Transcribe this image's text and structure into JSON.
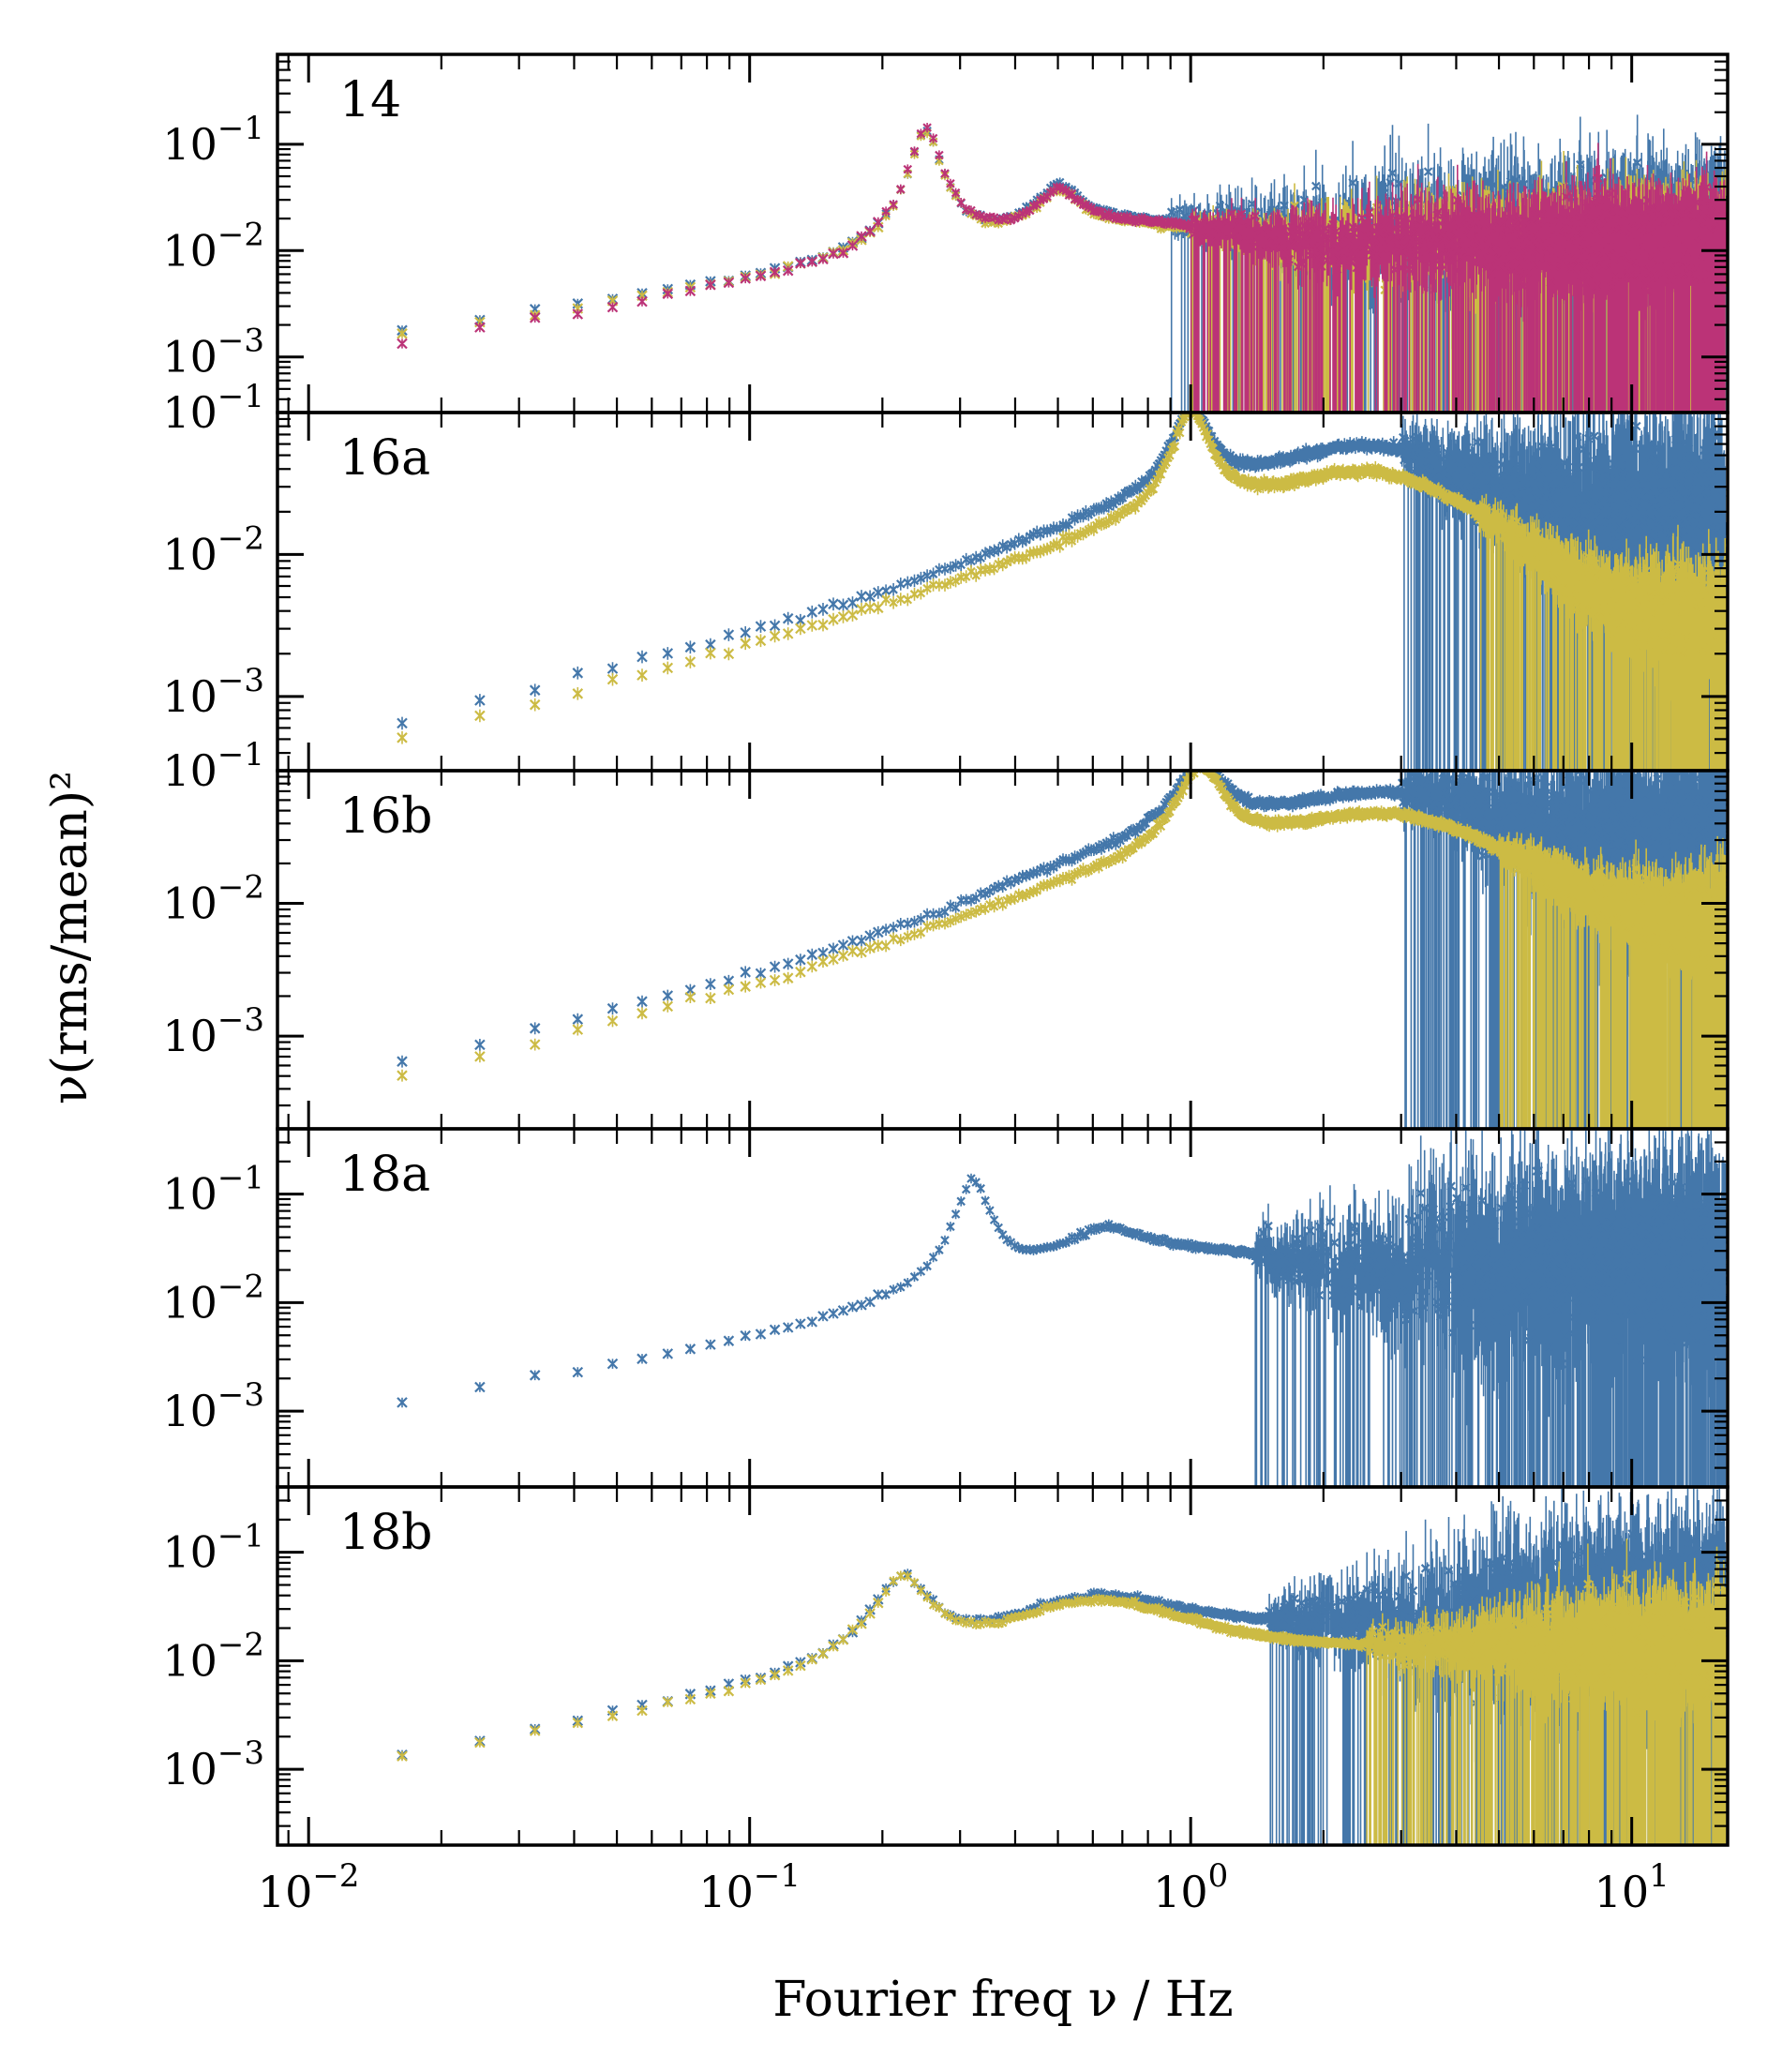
{
  "chart_data": {
    "type": "scatter",
    "title": "",
    "xlabel": "Fourier freq ν / Hz",
    "ylabel": "ν(rms/mean)²",
    "xscale": "log",
    "yscale": "log",
    "xlim": [
      0.0085,
      16.5
    ],
    "xticks": [
      {
        "value": 0.01,
        "base": "10",
        "exp": "−2"
      },
      {
        "value": 0.1,
        "base": "10",
        "exp": "−1"
      },
      {
        "value": 1,
        "base": "10",
        "exp": "0"
      },
      {
        "value": 10,
        "base": "10",
        "exp": "1"
      }
    ],
    "marker": "x",
    "colors": {
      "blue": "#4477aa",
      "yellow": "#ccbb44",
      "magenta": "#bb3377"
    },
    "panels": [
      {
        "label": "14",
        "ylim": [
          0.0003,
          0.7
        ],
        "yticks": [
          {
            "value": 0.1,
            "base": "10",
            "exp": "−1"
          },
          {
            "value": 0.01,
            "base": "10",
            "exp": "−2"
          },
          {
            "value": 0.001,
            "base": "10",
            "exp": "−3"
          }
        ],
        "series": [
          {
            "name": "blue",
            "color": "#4477aa",
            "components": [
              {
                "kind": "powerlaw",
                "norm": 0.0019,
                "pivot": 0.02,
                "slope": 0.62,
                "cutoff": 0.3
              },
              {
                "kind": "lorentz",
                "amp": 0.12,
                "nu0": 0.25,
                "width": 0.018
              },
              {
                "kind": "lorentz",
                "amp": 0.025,
                "nu0": 0.5,
                "width": 0.06
              },
              {
                "kind": "flat",
                "level": 0.014,
                "slope": 0.0
              }
            ],
            "noise_from": 0.9,
            "noise": 1.1
          },
          {
            "name": "yellow",
            "color": "#ccbb44",
            "components": [
              {
                "kind": "powerlaw",
                "norm": 0.0018,
                "pivot": 0.02,
                "slope": 0.62,
                "cutoff": 0.3
              },
              {
                "kind": "lorentz",
                "amp": 0.12,
                "nu0": 0.25,
                "width": 0.018
              },
              {
                "kind": "lorentz",
                "amp": 0.022,
                "nu0": 0.5,
                "width": 0.06
              },
              {
                "kind": "flat",
                "level": 0.012,
                "slope": 0.0
              }
            ],
            "noise_from": 1.0,
            "noise": 0.8
          },
          {
            "name": "magenta",
            "color": "#bb3377",
            "components": [
              {
                "kind": "powerlaw",
                "norm": 0.0015,
                "pivot": 0.02,
                "slope": 0.7,
                "cutoff": 0.3
              },
              {
                "kind": "lorentz",
                "amp": 0.13,
                "nu0": 0.25,
                "width": 0.018
              },
              {
                "kind": "lorentz",
                "amp": 0.022,
                "nu0": 0.5,
                "width": 0.06
              },
              {
                "kind": "flat",
                "level": 0.012,
                "slope": 0.0
              }
            ],
            "noise_from": 1.0,
            "noise": 0.8
          }
        ]
      },
      {
        "label": "16a",
        "ylim": [
          0.0003,
          0.1
        ],
        "yticks": [
          {
            "value": 0.1,
            "base": "10",
            "exp": "−1"
          },
          {
            "value": 0.01,
            "base": "10",
            "exp": "−2"
          },
          {
            "value": 0.001,
            "base": "10",
            "exp": "−3"
          }
        ],
        "series": [
          {
            "name": "blue",
            "color": "#4477aa",
            "components": [
              {
                "kind": "powerlaw",
                "norm": 0.0006,
                "pivot": 0.016,
                "slope": 0.75,
                "cutoff": 1.2
              },
              {
                "kind": "lorentz",
                "amp": 0.085,
                "nu0": 1.0,
                "width": 0.09
              },
              {
                "kind": "lorentz",
                "amp": 0.028,
                "nu0": 2.2,
                "width": 1.2
              },
              {
                "kind": "flat",
                "level": 0.012,
                "slope": 0.0
              }
            ],
            "noise_from": 3.0,
            "noise": 1.3
          },
          {
            "name": "yellow",
            "color": "#ccbb44",
            "components": [
              {
                "kind": "powerlaw",
                "norm": 0.00045,
                "pivot": 0.016,
                "slope": 0.8,
                "cutoff": 1.2
              },
              {
                "kind": "lorentz",
                "amp": 0.085,
                "nu0": 1.0,
                "width": 0.09
              },
              {
                "kind": "lorentz",
                "amp": 0.017,
                "nu0": 2.2,
                "width": 1.2
              },
              {
                "kind": "flat",
                "level": 0.005,
                "slope": -0.3
              }
            ],
            "noise_from": 4.5,
            "noise": 0.7
          }
        ]
      },
      {
        "label": "16b",
        "ylim": [
          0.0002,
          0.1
        ],
        "yticks": [
          {
            "value": 0.1,
            "base": "10",
            "exp": "−1"
          },
          {
            "value": 0.01,
            "base": "10",
            "exp": "−2"
          },
          {
            "value": 0.001,
            "base": "10",
            "exp": "−3"
          }
        ],
        "series": [
          {
            "name": "blue",
            "color": "#4477aa",
            "components": [
              {
                "kind": "powerlaw",
                "norm": 0.00055,
                "pivot": 0.016,
                "slope": 0.78,
                "cutoff": 1.3
              },
              {
                "kind": "lorentz",
                "amp": 0.085,
                "nu0": 1.05,
                "width": 0.12
              },
              {
                "kind": "lorentz",
                "amp": 0.027,
                "nu0": 2.3,
                "width": 1.5
              },
              {
                "kind": "flat",
                "level": 0.02,
                "slope": 0.0
              }
            ],
            "noise_from": 3.0,
            "noise": 1.3
          },
          {
            "name": "yellow",
            "color": "#ccbb44",
            "components": [
              {
                "kind": "powerlaw",
                "norm": 0.00042,
                "pivot": 0.016,
                "slope": 0.82,
                "cutoff": 1.3
              },
              {
                "kind": "lorentz",
                "amp": 0.085,
                "nu0": 1.05,
                "width": 0.12
              },
              {
                "kind": "lorentz",
                "amp": 0.02,
                "nu0": 2.3,
                "width": 1.5
              },
              {
                "kind": "flat",
                "level": 0.009,
                "slope": -0.2
              }
            ],
            "noise_from": 5.0,
            "noise": 0.7
          }
        ]
      },
      {
        "label": "18a",
        "ylim": [
          0.0002,
          0.4
        ],
        "yticks": [
          {
            "value": 0.1,
            "base": "10",
            "exp": "−1"
          },
          {
            "value": 0.01,
            "base": "10",
            "exp": "−2"
          },
          {
            "value": 0.001,
            "base": "10",
            "exp": "−3"
          }
        ],
        "series": [
          {
            "name": "blue",
            "color": "#4477aa",
            "components": [
              {
                "kind": "powerlaw",
                "norm": 0.0011,
                "pivot": 0.016,
                "slope": 0.7,
                "cutoff": 0.4
              },
              {
                "kind": "lorentz",
                "amp": 0.12,
                "nu0": 0.32,
                "width": 0.025
              },
              {
                "kind": "lorentz",
                "amp": 0.025,
                "nu0": 0.62,
                "width": 0.15
              },
              {
                "kind": "flat",
                "level": 0.022,
                "slope": 0.0
              }
            ],
            "noise_from": 1.4,
            "noise": 1.6
          }
        ]
      },
      {
        "label": "18b",
        "ylim": [
          0.0002,
          0.4
        ],
        "yticks": [
          {
            "value": 0.1,
            "base": "10",
            "exp": "−1"
          },
          {
            "value": 0.01,
            "base": "10",
            "exp": "−2"
          },
          {
            "value": 0.001,
            "base": "10",
            "exp": "−3"
          }
        ],
        "series": [
          {
            "name": "blue",
            "color": "#4477aa",
            "components": [
              {
                "kind": "powerlaw",
                "norm": 0.0012,
                "pivot": 0.016,
                "slope": 0.7,
                "cutoff": 0.28
              },
              {
                "kind": "lorentz",
                "amp": 0.05,
                "nu0": 0.22,
                "width": 0.03
              },
              {
                "kind": "lorentz",
                "amp": 0.02,
                "nu0": 0.55,
                "width": 0.25
              },
              {
                "kind": "flat",
                "level": 0.02,
                "slope": 0.1
              }
            ],
            "noise_from": 1.5,
            "noise": 1.4
          },
          {
            "name": "yellow",
            "color": "#ccbb44",
            "components": [
              {
                "kind": "powerlaw",
                "norm": 0.0011,
                "pivot": 0.016,
                "slope": 0.7,
                "cutoff": 0.28
              },
              {
                "kind": "lorentz",
                "amp": 0.05,
                "nu0": 0.22,
                "width": 0.03
              },
              {
                "kind": "lorentz",
                "amp": 0.02,
                "nu0": 0.55,
                "width": 0.25
              },
              {
                "kind": "flat",
                "level": 0.013,
                "slope": 0.0
              }
            ],
            "noise_from": 2.5,
            "noise": 0.9
          }
        ]
      }
    ]
  }
}
